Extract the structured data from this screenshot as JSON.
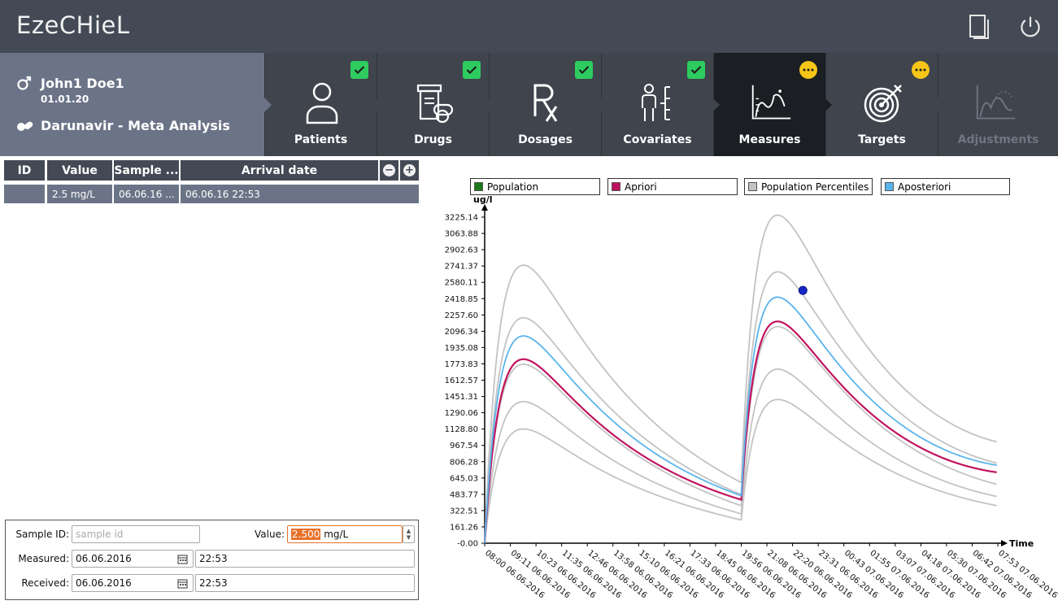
{
  "app": {
    "title": "EzeCHieL"
  },
  "header_icons": [
    "document-icon",
    "power-icon"
  ],
  "patient": {
    "name": "John1 Doe1",
    "dob": "01.01.20",
    "drug": "Darunavir - Meta Analysis"
  },
  "steps": [
    {
      "label": "Patients",
      "status": "done",
      "icon": "patient-icon"
    },
    {
      "label": "Drugs",
      "status": "done",
      "icon": "drugs-icon"
    },
    {
      "label": "Dosages",
      "status": "done",
      "icon": "rx-icon"
    },
    {
      "label": "Covariates",
      "status": "done",
      "icon": "covariates-icon"
    },
    {
      "label": "Measures",
      "status": "pending",
      "icon": "measures-icon"
    },
    {
      "label": "Targets",
      "status": "pending",
      "icon": "target-icon"
    },
    {
      "label": "Adjustments",
      "status": "disabled",
      "icon": "adjustments-icon"
    }
  ],
  "measures_table": {
    "headers": {
      "id": "ID",
      "value": "Value",
      "sample": "Sample ...",
      "arrival": "Arrival date"
    },
    "rows": [
      {
        "id": "",
        "value": "2.5 mg/L",
        "sample": "06.06.16 ...",
        "arrival": "06.06.16 22:53"
      }
    ]
  },
  "form": {
    "sample_id_label": "Sample ID:",
    "sample_id_placeholder": "sample id",
    "value_label": "Value:",
    "value_number": "2.500",
    "value_unit": "mg/L",
    "measured_label": "Measured:",
    "measured_date": "06.06.2016",
    "measured_time": "22:53",
    "received_label": "Received:",
    "received_date": "06.06.2016",
    "received_time": "22:53"
  },
  "chart_data": {
    "type": "line",
    "ylabel": "ug/l",
    "xlabel": "Time",
    "ylim": [
      0,
      3225.14
    ],
    "yticks": [
      "-0.00",
      "161.26",
      "322.51",
      "483.77",
      "645.03",
      "806.28",
      "967.54",
      "1128.80",
      "1290.06",
      "1451.31",
      "1612.57",
      "1773.83",
      "1935.08",
      "2096.34",
      "2257.60",
      "2418.85",
      "2580.11",
      "2741.37",
      "2902.63",
      "3063.88",
      "3225.14"
    ],
    "xticks": [
      "08:00 06.06.2016",
      "09:11 06.06.2016",
      "10:23 06.06.2016",
      "11:35 06.06.2016",
      "12:46 06.06.2016",
      "13:58 06.06.2016",
      "15:10 06.06.2016",
      "16:21 06.06.2016",
      "17:33 06.06.2016",
      "18:45 06.06.2016",
      "19:56 06.06.2016",
      "21:08 06.06.2016",
      "22:20 06.06.2016",
      "23:31 06.06.2016",
      "00:43 07.06.2016",
      "01:55 07.06.2016",
      "03:07 07.06.2016",
      "04:18 07.06.2016",
      "05:30 07.06.2016",
      "06:42 07.06.2016",
      "07:53 07.06.2016"
    ],
    "dose_hours": [
      0,
      12
    ],
    "hours_range": [
      0,
      24
    ],
    "legend": [
      {
        "name": "Population",
        "color": "#1a7a1a"
      },
      {
        "name": "Apriori",
        "color": "#c0135f"
      },
      {
        "name": "Population Percentiles",
        "color": "#c3c3c3"
      },
      {
        "name": "Aposteriori",
        "color": "#5ab4ec"
      }
    ],
    "series": [
      {
        "name": "Population Percentiles",
        "color": "#c3c3c3",
        "curves": [
          {
            "peak1": 1130,
            "trough1": 230,
            "peak2": 1420,
            "end": 370
          },
          {
            "peak1": 1400,
            "trough1": 290,
            "peak2": 1720,
            "end": 460
          },
          {
            "peak1": 1770,
            "trough1": 370,
            "peak2": 2140,
            "end": 580
          },
          {
            "peak1": 2230,
            "trough1": 480,
            "peak2": 2680,
            "end": 790
          },
          {
            "peak1": 2750,
            "trough1": 600,
            "peak2": 3240,
            "end": 1000
          }
        ]
      },
      {
        "name": "Apriori",
        "color": "#c0135f",
        "curves": [
          {
            "peak1": 1820,
            "trough1": 430,
            "peak2": 2190,
            "end": 700
          }
        ]
      },
      {
        "name": "Aposteriori",
        "color": "#5ab4ec",
        "curves": [
          {
            "peak1": 2050,
            "trough1": 470,
            "peak2": 2430,
            "end": 770
          }
        ]
      }
    ],
    "measure_points": [
      {
        "x": "22:53 06.06.2016",
        "y": 2500
      }
    ]
  }
}
